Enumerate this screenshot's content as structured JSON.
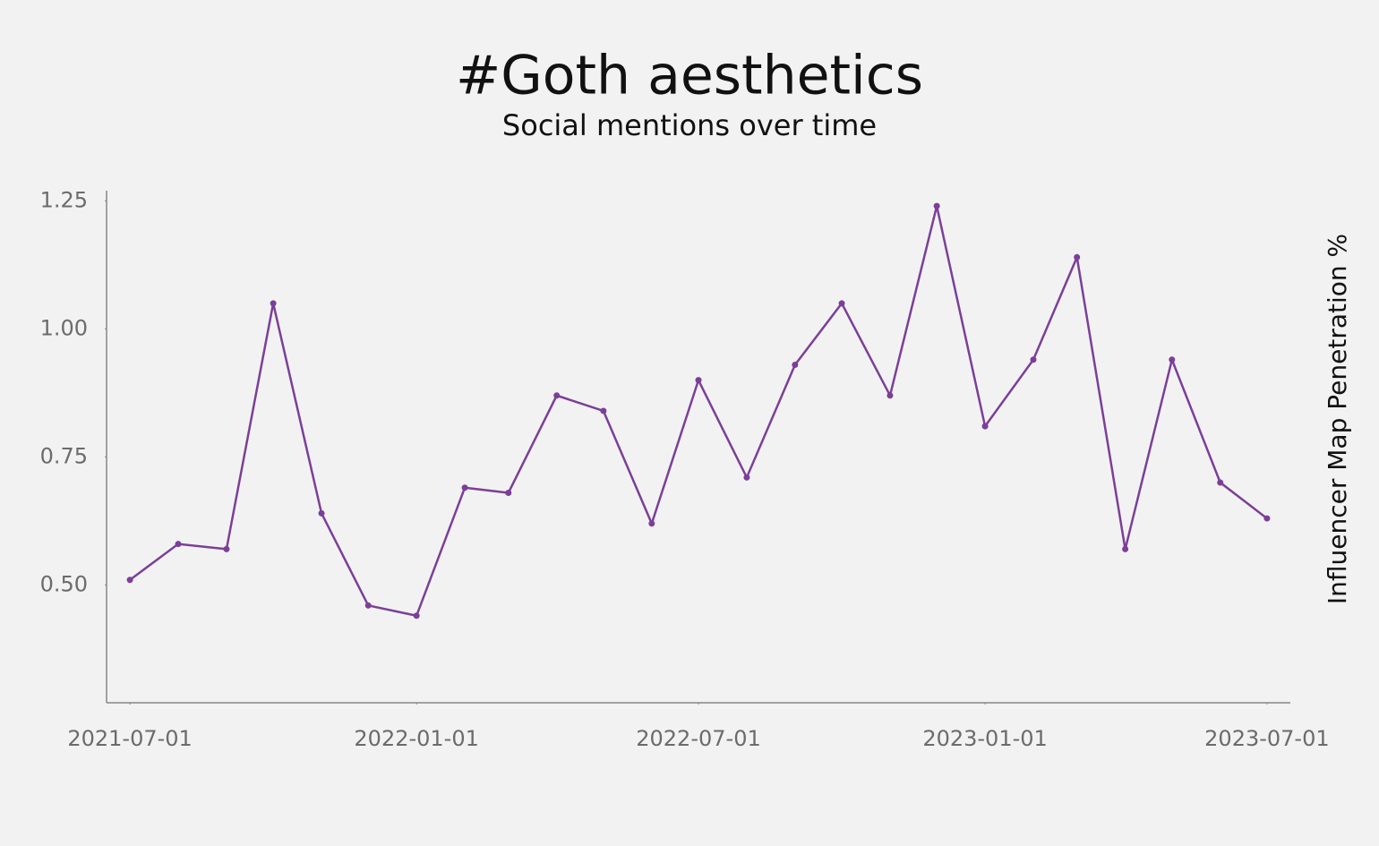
{
  "chart_data": {
    "type": "line",
    "title": "#Goth aesthetics",
    "subtitle": "Social mentions over time",
    "y_label": "Influencer Map Penetration %",
    "x": [
      "2021-07-01",
      "2021-08-01",
      "2021-09-01",
      "2021-10-01",
      "2021-11-01",
      "2021-12-01",
      "2022-01-01",
      "2022-02-01",
      "2022-03-01",
      "2022-04-01",
      "2022-05-01",
      "2022-06-01",
      "2022-07-01",
      "2022-08-01",
      "2022-09-01",
      "2022-10-01",
      "2022-11-01",
      "2022-12-01",
      "2023-01-01",
      "2023-02-01",
      "2023-03-01",
      "2023-04-01",
      "2023-05-01",
      "2023-06-01",
      "2023-07-01"
    ],
    "series": [
      {
        "name": "Influencer Map Penetration %",
        "color": "#7b3f98",
        "values": [
          0.51,
          0.58,
          0.57,
          1.05,
          0.64,
          0.46,
          0.44,
          0.69,
          0.68,
          0.87,
          0.84,
          0.62,
          0.9,
          0.71,
          0.93,
          1.05,
          0.87,
          1.24,
          0.81,
          0.94,
          1.14,
          0.57,
          0.94,
          0.7,
          0.63
        ]
      }
    ],
    "xlim": [
      "2021-06-16",
      "2023-07-16"
    ],
    "xticks": [
      "2021-07-01",
      "2022-01-01",
      "2022-07-01",
      "2023-01-01",
      "2023-07-01"
    ],
    "ylim": [
      0.27,
      1.27
    ],
    "yticks": [
      {
        "value": 0.5,
        "label": "0.50"
      },
      {
        "value": 0.75,
        "label": "0.75"
      },
      {
        "value": 1,
        "label": "1.00"
      },
      1.25
    ],
    "grid": false
  }
}
